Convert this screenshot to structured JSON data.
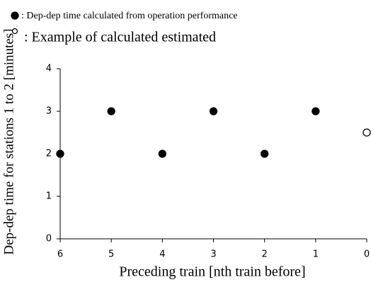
{
  "chart_data": {
    "type": "scatter",
    "xlabel": "Preceding train [nth train before]",
    "ylabel": "Dep-dep time for stations 1 to 2 [minutes]",
    "series": [
      {
        "name": ": Dep-dep time calculated from operation performance",
        "color": "#000000",
        "filled": true,
        "x": [
          6,
          5,
          4,
          3,
          2,
          1
        ],
        "values": [
          2,
          3,
          2,
          3,
          2,
          3
        ]
      },
      {
        "name": ": Example of calculated estimated",
        "color": "#000000",
        "filled": false,
        "x": [
          0
        ],
        "values": [
          2.5
        ]
      }
    ],
    "xlim": [
      6,
      0
    ],
    "xticks": [
      6,
      5,
      4,
      3,
      2,
      1,
      0
    ],
    "ylim": [
      0,
      4
    ],
    "yticks": [
      0,
      1,
      2,
      3,
      4
    ],
    "grid": false,
    "legend": "top-left"
  }
}
